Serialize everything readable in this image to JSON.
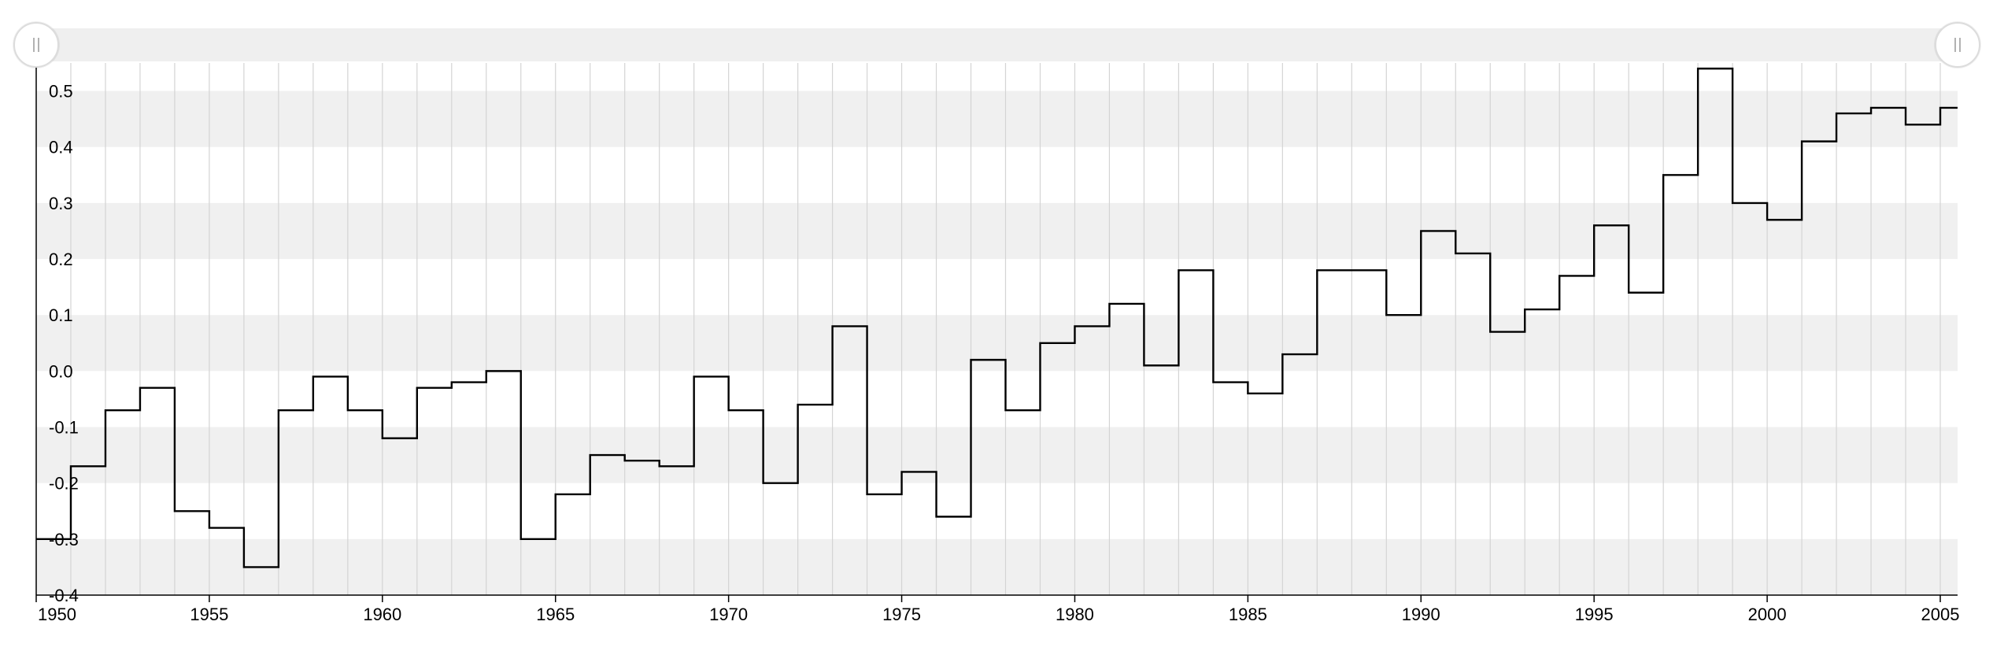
{
  "chart_data": {
    "type": "line",
    "step": true,
    "title": "",
    "xlabel": "",
    "ylabel": "",
    "xlim": [
      1950,
      2005.5
    ],
    "ylim": [
      -0.4,
      0.55
    ],
    "x_ticks": [
      1950,
      1955,
      1960,
      1965,
      1970,
      1975,
      1980,
      1985,
      1990,
      1995,
      2000,
      2005
    ],
    "y_ticks": [
      -0.4,
      -0.3,
      -0.2,
      -0.1,
      0.0,
      0.1,
      0.2,
      0.3,
      0.4,
      0.5
    ],
    "y_tick_labels": [
      "-0.4",
      "-0.3",
      "-0.2",
      "-0.1",
      "0.0",
      "0.1",
      "0.2",
      "0.3",
      "0.4",
      "0.5"
    ],
    "horizontal_bands": true,
    "vertical_gridlines": "yearly",
    "range_selector": true,
    "series": [
      {
        "x": [
          1950,
          1951,
          1952,
          1953,
          1954,
          1955,
          1956,
          1957,
          1958,
          1959,
          1960,
          1961,
          1962,
          1963,
          1964,
          1965,
          1966,
          1967,
          1968,
          1969,
          1970,
          1971,
          1972,
          1973,
          1974,
          1975,
          1976,
          1977,
          1978,
          1979,
          1980,
          1981,
          1982,
          1983,
          1984,
          1985,
          1986,
          1987,
          1988,
          1989,
          1990,
          1991,
          1992,
          1993,
          1994,
          1995,
          1996,
          1997,
          1998,
          1999,
          2000,
          2001,
          2002,
          2003,
          2004,
          2005
        ],
        "values": [
          -0.3,
          -0.17,
          -0.07,
          -0.03,
          -0.25,
          -0.28,
          -0.35,
          -0.07,
          -0.01,
          -0.07,
          -0.12,
          -0.03,
          -0.02,
          0.0,
          -0.3,
          -0.22,
          -0.15,
          -0.16,
          -0.17,
          -0.01,
          -0.07,
          -0.2,
          -0.06,
          0.08,
          -0.22,
          -0.18,
          -0.26,
          0.02,
          -0.07,
          0.05,
          0.08,
          0.12,
          0.01,
          0.18,
          -0.02,
          -0.04,
          0.03,
          0.18,
          0.18,
          0.1,
          0.25,
          0.21,
          0.07,
          0.11,
          0.17,
          0.26,
          0.14,
          0.35,
          0.54,
          0.3,
          0.27,
          0.41,
          0.46,
          0.47,
          0.44,
          0.47
        ]
      }
    ],
    "colors": {
      "line": "#000000",
      "band": "#f0f0f0",
      "grid": "#d4d4d4",
      "axis": "#000000",
      "slider_track": "#efefef"
    }
  }
}
